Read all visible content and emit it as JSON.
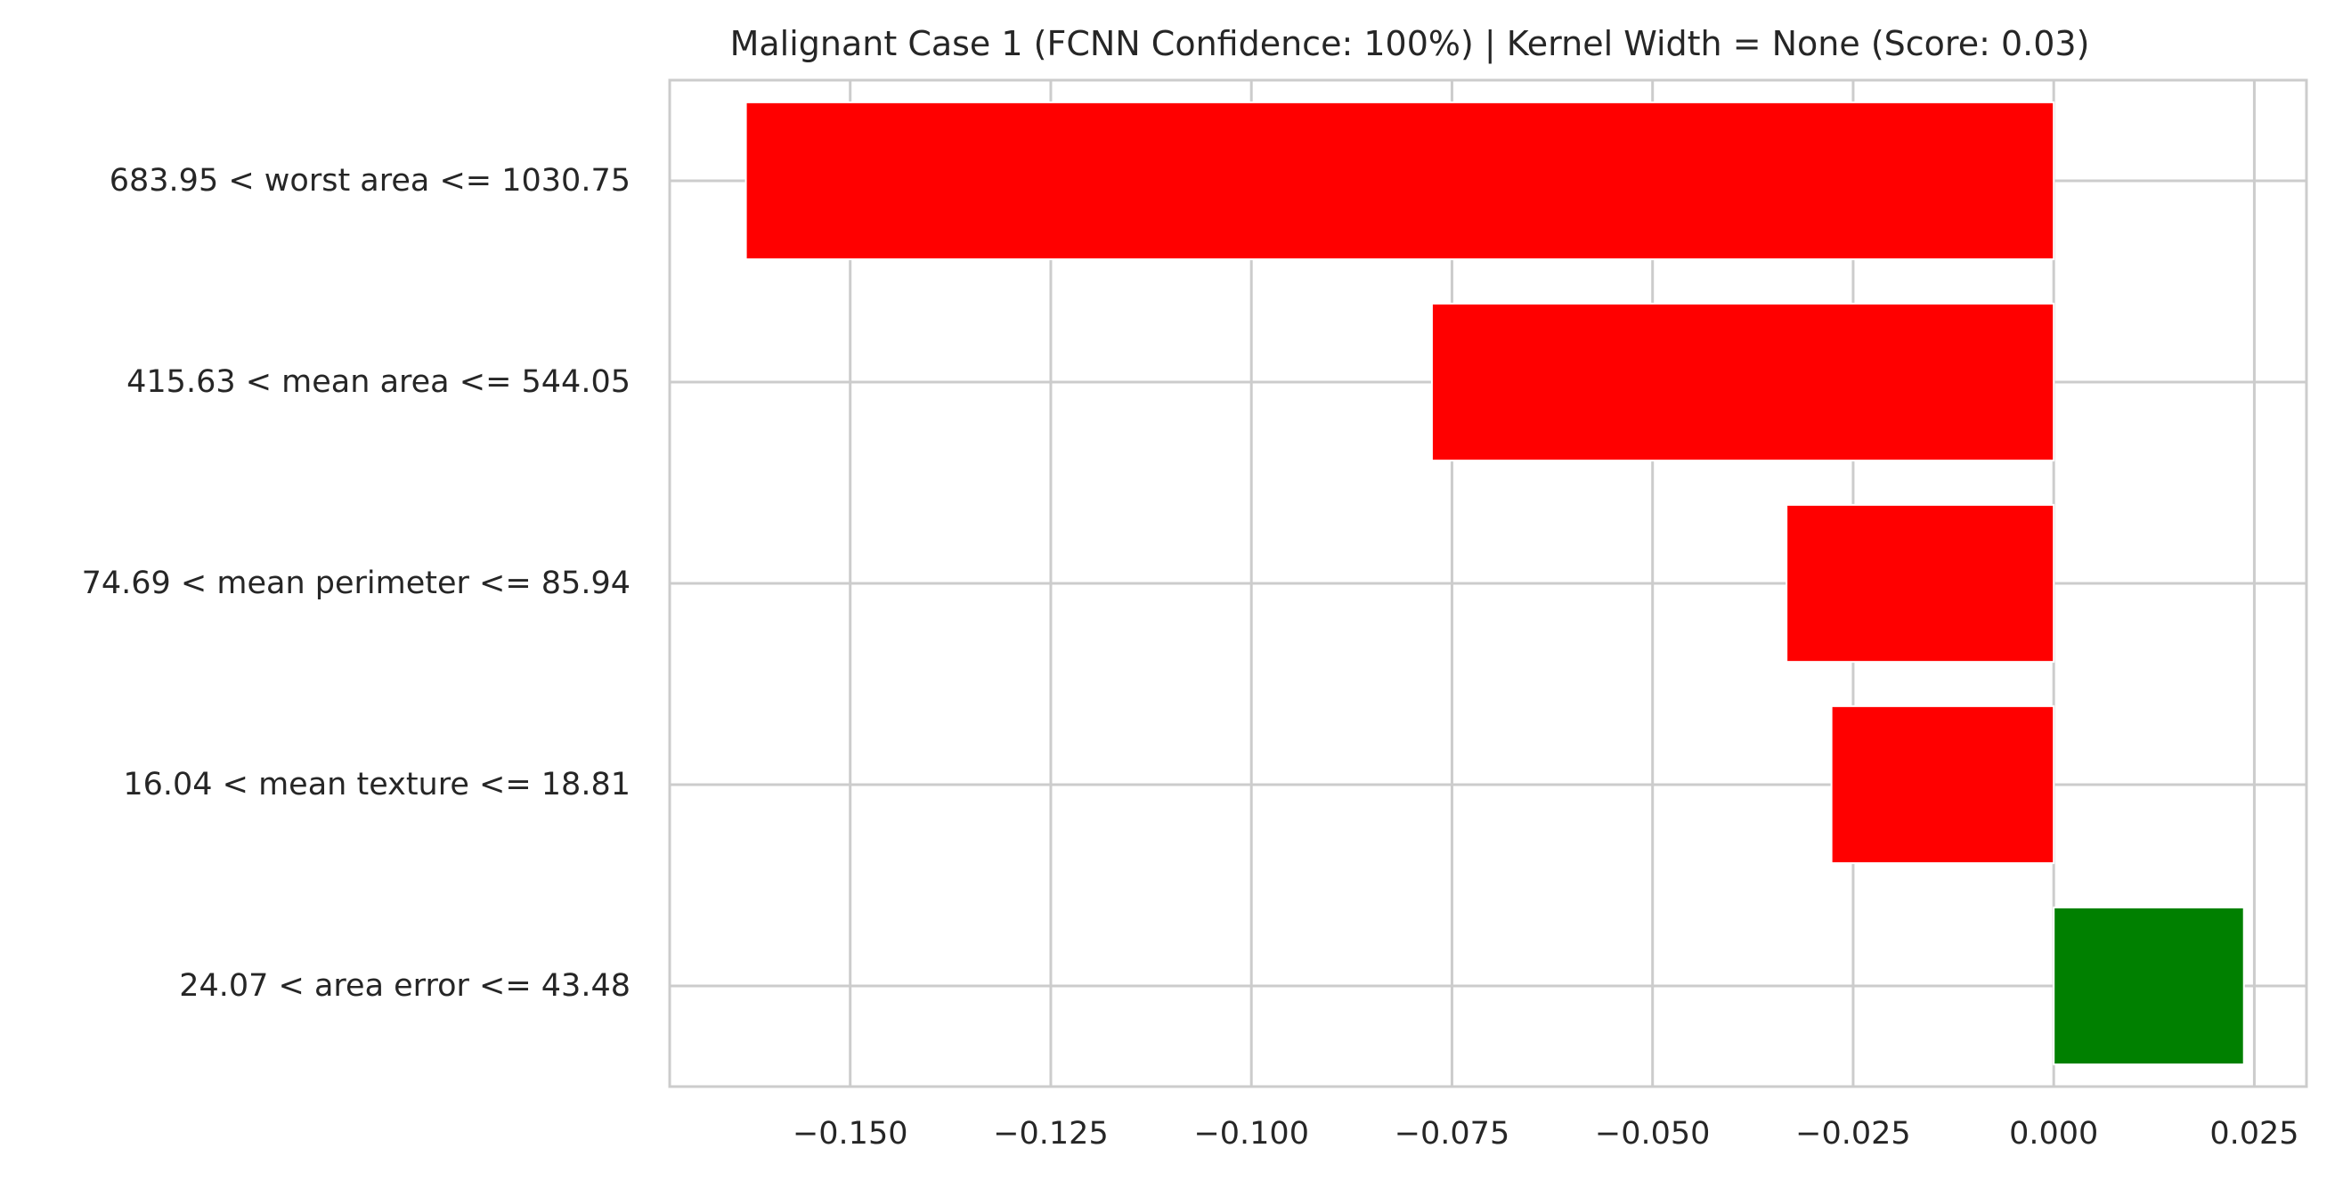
{
  "chart_data": {
    "type": "bar",
    "orientation": "horizontal",
    "title": "Malignant Case 1 (FCNN Confidence: 100%) | Kernel Width = None (Score: 0.03)",
    "xlabel": "",
    "ylabel": "",
    "categories": [
      "683.95 < worst area <= 1030.75",
      "415.63 < mean area <= 544.05",
      "74.69 < mean perimeter <= 85.94",
      "16.04 < mean texture <= 18.81",
      "24.07 < area error <= 43.48"
    ],
    "values": [
      -0.163,
      -0.0775,
      -0.0333,
      -0.0277,
      0.0237
    ],
    "colors": [
      "#ff0000",
      "#ff0000",
      "#ff0000",
      "#ff0000",
      "#008000"
    ],
    "xticks": [
      -0.15,
      -0.125,
      -0.1,
      -0.075,
      -0.05,
      -0.025,
      0.0,
      0.025
    ],
    "xtick_labels": [
      "−0.150",
      "−0.125",
      "−0.100",
      "−0.075",
      "−0.050",
      "−0.025",
      "0.000",
      "0.025"
    ],
    "xlim": [
      -0.1725,
      0.0315
    ],
    "grid": true,
    "legend": "none"
  }
}
